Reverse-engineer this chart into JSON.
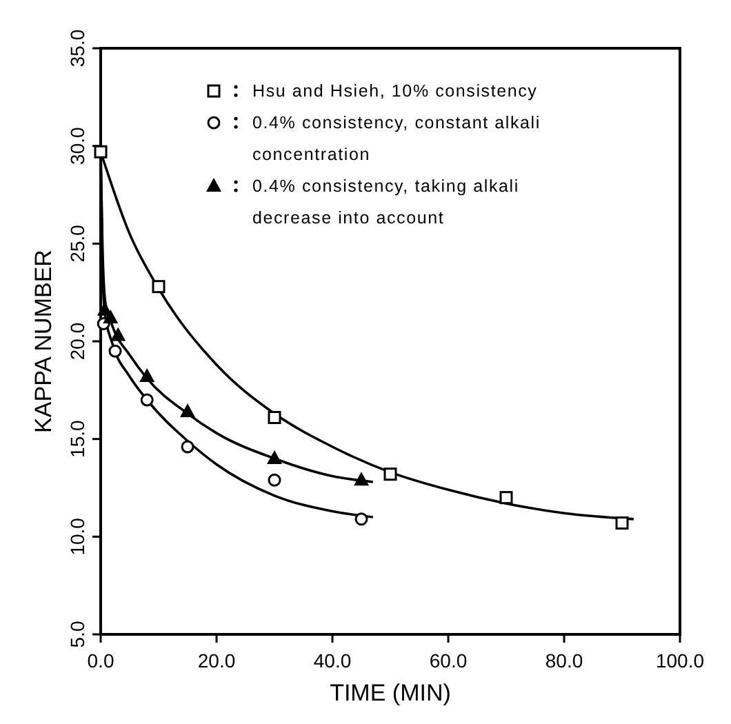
{
  "chart_data": {
    "type": "scatter",
    "xlabel": "TIME (MIN)",
    "ylabel": "KAPPA NUMBER",
    "xlim": [
      0,
      100
    ],
    "ylim": [
      5,
      35
    ],
    "xticks": [
      {
        "value": 0,
        "label": "0.0"
      },
      {
        "value": 20,
        "label": "20.0"
      },
      {
        "value": 40,
        "label": "40.0"
      },
      {
        "value": 60,
        "label": "60.0"
      },
      {
        "value": 80,
        "label": "80.0"
      },
      {
        "value": 100,
        "label": "100.0"
      }
    ],
    "yticks": [
      {
        "value": 5,
        "label": "5.0"
      },
      {
        "value": 10,
        "label": "10.0"
      },
      {
        "value": 15,
        "label": "15.0"
      },
      {
        "value": 20,
        "label": "20.0"
      },
      {
        "value": 25,
        "label": "25.0"
      },
      {
        "value": 30,
        "label": "30.0"
      },
      {
        "value": 35,
        "label": "35.0"
      }
    ],
    "legend": "top",
    "grid": false,
    "series": [
      {
        "name": "Hsu and Hsieh, 10% consistency",
        "color": "#000000",
        "marker": "square",
        "x": [
          0,
          10,
          30,
          50,
          70,
          90
        ],
        "values": [
          29.7,
          22.8,
          16.1,
          13.2,
          12.0,
          10.7
        ]
      },
      {
        "name": "0.4% consistency, constant alkali concentration",
        "color": "#000000",
        "marker": "circle",
        "x": [
          0.5,
          2.5,
          8,
          15,
          30,
          45
        ],
        "values": [
          20.9,
          19.5,
          17.0,
          14.6,
          12.9,
          10.9
        ]
      },
      {
        "name": "0.4% consistency, taking alkali decrease into account",
        "color": "#000000",
        "marker": "triangle",
        "x": [
          0.7,
          1.7,
          3,
          8,
          15,
          30,
          45
        ],
        "values": [
          21.6,
          21.2,
          20.3,
          18.2,
          16.4,
          14.0,
          12.9
        ]
      },
      {
        "type": "line",
        "color": "#000000",
        "marker": "none",
        "line_style": "solid",
        "x": [
          0,
          5,
          10,
          20,
          30,
          40,
          50,
          60,
          70,
          80,
          92
        ],
        "values": [
          29.7,
          25.5,
          22.7,
          18.8,
          16.3,
          14.6,
          13.3,
          12.4,
          11.7,
          11.2,
          10.9
        ]
      },
      {
        "type": "line",
        "color": "#000000",
        "marker": "none",
        "line_style": "solid",
        "x": [
          0,
          0.3,
          0.7,
          2,
          5,
          8,
          15,
          20,
          30,
          40,
          47
        ],
        "values": [
          29.7,
          24,
          21.5,
          19.9,
          18.2,
          17.0,
          14.9,
          13.7,
          12.1,
          11.3,
          11.0
        ]
      },
      {
        "type": "line",
        "color": "#000000",
        "marker": "none",
        "line_style": "solid",
        "x": [
          0,
          0.3,
          0.8,
          2,
          5,
          8,
          15,
          20,
          30,
          40,
          47
        ],
        "values": [
          29.7,
          25,
          22,
          20.8,
          19.3,
          18.1,
          16.3,
          15.3,
          14.0,
          13.1,
          12.8
        ]
      }
    ]
  }
}
